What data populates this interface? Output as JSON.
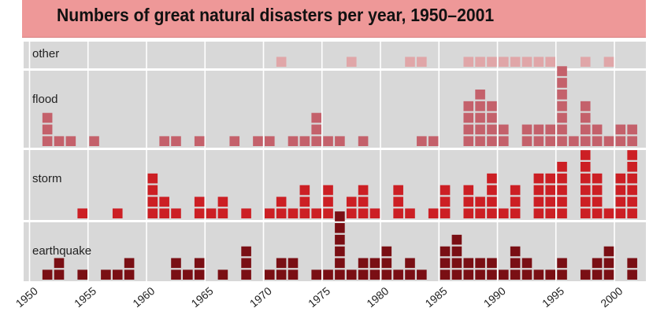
{
  "chart_data": {
    "type": "bar",
    "title": "Numbers of great natural disasters per year, 1950–2001",
    "x": [
      1950,
      1951,
      1952,
      1953,
      1954,
      1955,
      1956,
      1957,
      1958,
      1959,
      1960,
      1961,
      1962,
      1963,
      1964,
      1965,
      1966,
      1967,
      1968,
      1969,
      1970,
      1971,
      1972,
      1973,
      1974,
      1975,
      1976,
      1977,
      1978,
      1979,
      1980,
      1981,
      1982,
      1983,
      1984,
      1985,
      1986,
      1987,
      1988,
      1989,
      1990,
      1991,
      1992,
      1993,
      1994,
      1995,
      1996,
      1997,
      1998,
      1999,
      2000,
      2001
    ],
    "x_tick_labels": [
      "1950",
      "1955",
      "1960",
      "1965",
      "1970",
      "1975",
      "1980",
      "1985",
      "1990",
      "1995",
      "2000"
    ],
    "xlim": [
      1950,
      2001
    ],
    "series": [
      {
        "name": "other",
        "color": "#e0a6a8",
        "values": [
          0,
          0,
          0,
          0,
          0,
          0,
          0,
          0,
          0,
          0,
          0,
          0,
          0,
          0,
          0,
          0,
          0,
          0,
          0,
          0,
          0,
          1,
          0,
          0,
          0,
          0,
          0,
          1,
          0,
          0,
          0,
          0,
          1,
          1,
          0,
          0,
          0,
          1,
          1,
          1,
          1,
          1,
          1,
          1,
          1,
          0,
          0,
          1,
          0,
          1,
          0,
          0
        ]
      },
      {
        "name": "flood",
        "color": "#c4616b",
        "values": [
          0,
          3,
          1,
          1,
          0,
          1,
          0,
          0,
          0,
          0,
          0,
          1,
          1,
          0,
          1,
          0,
          0,
          1,
          0,
          1,
          1,
          0,
          1,
          1,
          3,
          1,
          1,
          0,
          1,
          0,
          0,
          0,
          0,
          1,
          1,
          0,
          0,
          4,
          5,
          4,
          2,
          0,
          2,
          2,
          2,
          7,
          1,
          4,
          2,
          1,
          2,
          2
        ]
      },
      {
        "name": "storm",
        "color": "#cc1f24",
        "values": [
          0,
          0,
          0,
          0,
          1,
          0,
          0,
          1,
          0,
          0,
          4,
          2,
          1,
          0,
          2,
          1,
          2,
          0,
          1,
          0,
          1,
          2,
          1,
          3,
          1,
          3,
          0,
          2,
          3,
          1,
          0,
          3,
          1,
          0,
          1,
          3,
          0,
          3,
          2,
          4,
          1,
          3,
          0,
          4,
          4,
          5,
          0,
          6,
          4,
          1,
          4,
          6
        ]
      },
      {
        "name": "earthquake",
        "color": "#7a0f14",
        "values": [
          0,
          1,
          2,
          0,
          1,
          0,
          1,
          1,
          2,
          0,
          0,
          0,
          2,
          1,
          2,
          0,
          1,
          0,
          3,
          0,
          1,
          2,
          2,
          0,
          1,
          1,
          6,
          1,
          2,
          2,
          3,
          1,
          2,
          1,
          0,
          3,
          4,
          2,
          2,
          2,
          1,
          3,
          2,
          1,
          1,
          2,
          0,
          1,
          2,
          3,
          0,
          2
        ]
      }
    ]
  }
}
